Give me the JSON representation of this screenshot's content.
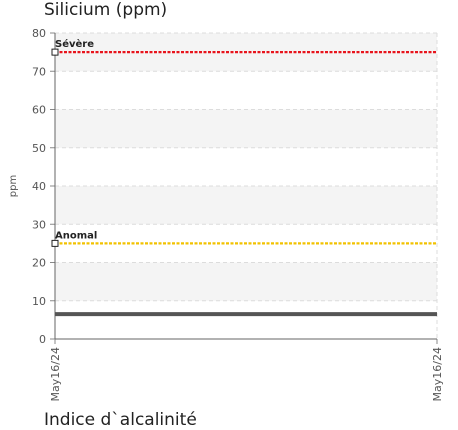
{
  "chart_data": {
    "type": "line",
    "title": "Silicium (ppm)",
    "ylabel": "ppm",
    "xlabel": "",
    "ylim": [
      0,
      80
    ],
    "yticks": [
      0,
      10,
      20,
      30,
      40,
      50,
      60,
      70,
      80
    ],
    "x": [
      "May16/24",
      "May16/24"
    ],
    "series": [
      {
        "values": [
          6.5,
          6.5
        ],
        "color": "#555555"
      }
    ],
    "thresholds": [
      {
        "label": "Sévère",
        "value": 75,
        "color": "#e8141c"
      },
      {
        "label": "Anomal",
        "value": 25,
        "color": "#f2c200"
      }
    ],
    "grid": true
  },
  "next_chart": {
    "title": "Indice d`alcalinité"
  }
}
